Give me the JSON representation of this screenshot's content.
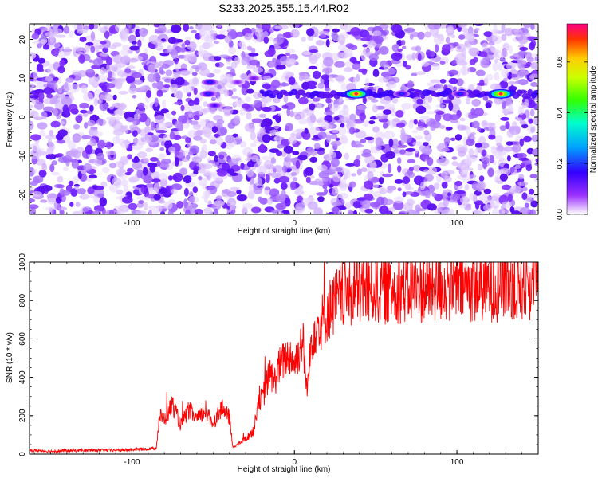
{
  "title": "S233.2025.355.15.44.R02",
  "chart_data": [
    {
      "type": "heatmap",
      "xlabel": "Height of straight line (km)",
      "ylabel": "Frequency (Hz)",
      "xlim": [
        -163,
        150
      ],
      "ylim": [
        -25,
        24
      ],
      "xticks": [
        -100,
        0,
        100
      ],
      "yticks": [
        -20,
        -10,
        0,
        10,
        20
      ],
      "colorbar": {
        "label": "Normalized spectral amplitude",
        "range": [
          0.0,
          0.75
        ],
        "ticks": [
          0.0,
          0.2,
          0.4,
          0.6
        ],
        "tick_labels": [
          "0.0",
          "0.2",
          "0.4",
          "0.6"
        ]
      },
      "band_frequency_hz": 6,
      "peaks": [
        {
          "x": -52,
          "y": 9,
          "value": 0.2
        },
        {
          "x": -53,
          "y": 6,
          "value": 0.2
        },
        {
          "x": -49,
          "y": 3,
          "value": 0.15
        },
        {
          "x": -35,
          "y": 9,
          "value": 0.1
        },
        {
          "x": -25,
          "y": 10,
          "value": 0.12
        },
        {
          "x": 38,
          "y": 6,
          "value": 0.72
        },
        {
          "x": 66,
          "y": 6,
          "value": 0.2
        },
        {
          "x": 102,
          "y": 6,
          "value": 0.2
        },
        {
          "x": 127,
          "y": 6,
          "value": 0.72
        }
      ]
    },
    {
      "type": "line",
      "xlabel": "Height of straight line (km)",
      "ylabel": "SNR (10 * v/v)",
      "xlim": [
        -163,
        150
      ],
      "ylim": [
        0,
        1000
      ],
      "xticks": [
        -100,
        0,
        100
      ],
      "yticks": [
        0,
        200,
        400,
        600,
        800,
        1000
      ],
      "series": [
        {
          "color": "#ff0000",
          "x": [
            -163,
            -150,
            -130,
            -110,
            -95,
            -85,
            -83,
            -80,
            -75,
            -70,
            -65,
            -60,
            -55,
            -50,
            -45,
            -40,
            -38,
            -35,
            -30,
            -25,
            -22,
            -20,
            -18,
            -15,
            -12,
            -10,
            -8,
            -5,
            -3,
            0,
            3,
            5,
            8,
            10,
            12,
            15,
            18,
            20,
            25,
            30,
            40,
            50,
            70,
            90,
            110,
            130,
            150
          ],
          "y": [
            20,
            15,
            20,
            20,
            25,
            30,
            200,
            180,
            260,
            150,
            230,
            180,
            220,
            160,
            240,
            190,
            40,
            50,
            80,
            120,
            300,
            280,
            340,
            420,
            380,
            450,
            470,
            500,
            520,
            470,
            540,
            610,
            300,
            560,
            650,
            680,
            700,
            740,
            790,
            830,
            850,
            860,
            865,
            870,
            875,
            880,
            885
          ]
        }
      ]
    }
  ]
}
